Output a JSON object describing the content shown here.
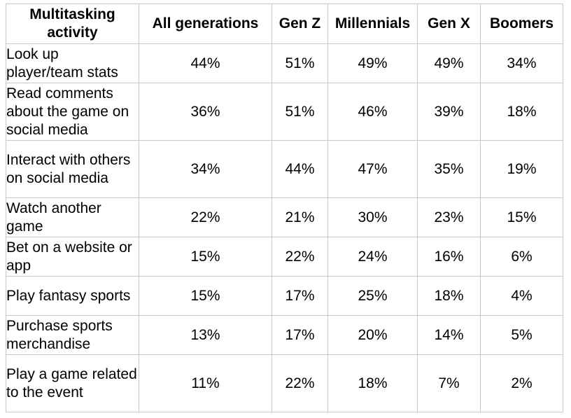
{
  "table": {
    "headers": [
      "Multitasking activity",
      "All generations",
      "Gen Z",
      "Millennials",
      "Gen X",
      "Boomers"
    ],
    "rows": [
      {
        "activity": "Look up player/team stats",
        "values": [
          "44%",
          "51%",
          "49%",
          "49%",
          "34%"
        ]
      },
      {
        "activity": "Read comments about the game on social media",
        "values": [
          "36%",
          "51%",
          "46%",
          "39%",
          "18%"
        ]
      },
      {
        "activity": "Interact with others on social media",
        "values": [
          "34%",
          "44%",
          "47%",
          "35%",
          "19%"
        ]
      },
      {
        "activity": "Watch another game",
        "values": [
          "22%",
          "21%",
          "30%",
          "23%",
          "15%"
        ]
      },
      {
        "activity": "Bet on a website or app",
        "values": [
          "15%",
          "22%",
          "24%",
          "16%",
          "6%"
        ]
      },
      {
        "activity": "Play fantasy sports",
        "values": [
          "15%",
          "17%",
          "25%",
          "18%",
          "4%"
        ]
      },
      {
        "activity": "Purchase sports merchandise",
        "values": [
          "13%",
          "17%",
          "20%",
          "14%",
          "5%"
        ]
      },
      {
        "activity": "Play a game related to the event",
        "values": [
          "11%",
          "22%",
          "18%",
          "7%",
          "2%"
        ]
      }
    ]
  }
}
